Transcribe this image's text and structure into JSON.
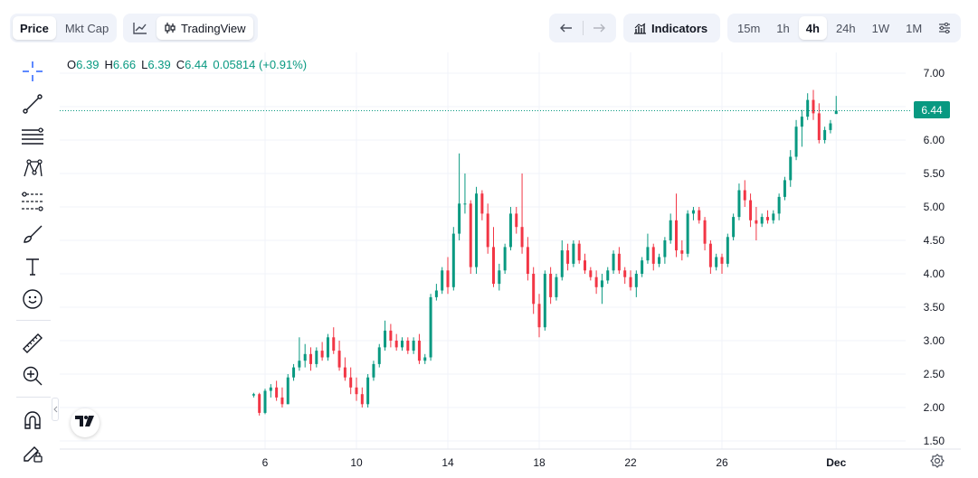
{
  "header": {
    "metric_tabs": [
      {
        "label": "Price",
        "active": true
      },
      {
        "label": "Mkt Cap",
        "active": false
      }
    ],
    "chart_type_tabs": [
      {
        "icon": "line-chart-icon",
        "active": false
      },
      {
        "icon": "candles-icon",
        "label": "TradingView",
        "active": true
      }
    ],
    "nav": [
      {
        "icon": "arrow-left-icon"
      },
      {
        "icon": "arrow-right-icon"
      }
    ],
    "indicators_label": "Indicators",
    "timeframes": [
      {
        "label": "15m",
        "active": false
      },
      {
        "label": "1h",
        "active": false
      },
      {
        "label": "4h",
        "active": true
      },
      {
        "label": "24h",
        "active": false
      },
      {
        "label": "1W",
        "active": false
      },
      {
        "label": "1M",
        "active": false
      }
    ],
    "settings_icon": "sliders-icon"
  },
  "toolbar": [
    "crosshair-icon",
    "trend-line-icon",
    "horizontal-lines-icon",
    "pattern-icon",
    "fib-levels-icon",
    "brush-icon",
    "text-icon",
    "emoji-icon",
    "ruler-icon",
    "zoom-in-icon",
    "magnet-icon",
    "edit-lock-icon"
  ],
  "legend": {
    "o_label": "O",
    "o": "6.39",
    "h_label": "H",
    "h": "6.66",
    "l_label": "L",
    "l": "6.39",
    "c_label": "C",
    "c": "6.44",
    "change": "0.05814 (+0.91%)"
  },
  "colors": {
    "up": "#089981",
    "down": "#f23645",
    "grid": "#f0f3fa",
    "text": "#131722"
  },
  "chart_data": {
    "type": "candlestick",
    "last_price": "6.44",
    "y_ticks": [
      "1.50",
      "2.00",
      "2.50",
      "3.00",
      "3.50",
      "4.00",
      "4.50",
      "5.00",
      "5.50",
      "6.00",
      "6.50",
      "7.00"
    ],
    "ylim": [
      1.5,
      7.0
    ],
    "x_ticks": [
      {
        "label": "6",
        "day": 6
      },
      {
        "label": "10",
        "day": 10
      },
      {
        "label": "14",
        "day": 14
      },
      {
        "label": "18",
        "day": 18
      },
      {
        "label": "22",
        "day": 22
      },
      {
        "label": "26",
        "day": 26
      },
      {
        "label": "Dec",
        "day": 31
      }
    ],
    "xlim": [
      1,
      32
    ],
    "start_day": 5.5,
    "candles": [
      [
        2.18,
        2.22,
        2.15,
        2.2
      ],
      [
        2.2,
        2.22,
        1.88,
        1.92
      ],
      [
        1.92,
        2.28,
        1.9,
        2.25
      ],
      [
        2.25,
        2.35,
        2.15,
        2.3
      ],
      [
        2.3,
        2.4,
        2.1,
        2.15
      ],
      [
        2.15,
        2.3,
        2.0,
        2.05
      ],
      [
        2.05,
        2.5,
        2.05,
        2.45
      ],
      [
        2.45,
        2.65,
        2.4,
        2.6
      ],
      [
        2.6,
        3.05,
        2.55,
        2.7
      ],
      [
        2.7,
        2.95,
        2.6,
        2.8
      ],
      [
        2.8,
        2.9,
        2.55,
        2.65
      ],
      [
        2.65,
        2.9,
        2.6,
        2.85
      ],
      [
        2.85,
        2.98,
        2.7,
        2.75
      ],
      [
        2.75,
        3.1,
        2.7,
        3.05
      ],
      [
        3.05,
        3.2,
        2.8,
        2.85
      ],
      [
        2.85,
        3.0,
        2.55,
        2.6
      ],
      [
        2.6,
        2.75,
        2.4,
        2.45
      ],
      [
        2.45,
        2.6,
        2.2,
        2.3
      ],
      [
        2.3,
        2.45,
        2.1,
        2.2
      ],
      [
        2.2,
        2.3,
        2.0,
        2.05
      ],
      [
        2.05,
        2.5,
        2.0,
        2.45
      ],
      [
        2.45,
        2.7,
        2.4,
        2.65
      ],
      [
        2.65,
        2.95,
        2.6,
        2.9
      ],
      [
        2.9,
        3.3,
        2.85,
        3.15
      ],
      [
        3.15,
        3.25,
        2.9,
        3.0
      ],
      [
        3.0,
        3.1,
        2.85,
        2.9
      ],
      [
        2.9,
        3.05,
        2.85,
        3.0
      ],
      [
        3.0,
        3.05,
        2.8,
        2.85
      ],
      [
        2.85,
        3.05,
        2.8,
        3.0
      ],
      [
        3.0,
        3.1,
        2.65,
        2.7
      ],
      [
        2.7,
        2.8,
        2.65,
        2.75
      ],
      [
        2.75,
        3.7,
        2.7,
        3.65
      ],
      [
        3.65,
        3.85,
        3.6,
        3.75
      ],
      [
        3.75,
        4.1,
        3.7,
        4.05
      ],
      [
        4.05,
        4.25,
        3.7,
        3.8
      ],
      [
        3.8,
        4.7,
        3.75,
        4.6
      ],
      [
        4.6,
        5.8,
        4.5,
        5.05
      ],
      [
        5.05,
        5.5,
        4.9,
        5.05
      ],
      [
        5.05,
        5.1,
        4.0,
        4.1
      ],
      [
        4.1,
        5.3,
        4.0,
        5.2
      ],
      [
        5.2,
        5.25,
        4.8,
        4.9
      ],
      [
        4.9,
        5.05,
        4.3,
        4.4
      ],
      [
        4.4,
        4.7,
        3.8,
        3.85
      ],
      [
        3.85,
        4.15,
        3.75,
        4.05
      ],
      [
        4.05,
        4.45,
        4.0,
        4.4
      ],
      [
        4.4,
        5.0,
        4.35,
        4.9
      ],
      [
        4.9,
        5.0,
        4.6,
        4.7
      ],
      [
        4.7,
        5.5,
        4.3,
        4.4
      ],
      [
        4.4,
        4.55,
        3.9,
        4.0
      ],
      [
        4.0,
        4.1,
        3.4,
        3.55
      ],
      [
        3.55,
        3.7,
        3.05,
        3.2
      ],
      [
        3.2,
        4.05,
        3.15,
        4.0
      ],
      [
        4.0,
        4.1,
        3.55,
        3.65
      ],
      [
        3.65,
        4.0,
        3.6,
        3.95
      ],
      [
        3.95,
        4.5,
        3.9,
        4.35
      ],
      [
        4.35,
        4.45,
        4.05,
        4.15
      ],
      [
        4.15,
        4.5,
        4.1,
        4.45
      ],
      [
        4.45,
        4.5,
        4.15,
        4.2
      ],
      [
        4.2,
        4.3,
        4.0,
        4.05
      ],
      [
        4.05,
        4.1,
        3.9,
        3.95
      ],
      [
        3.95,
        4.05,
        3.7,
        3.8
      ],
      [
        3.8,
        4.0,
        3.55,
        3.9
      ],
      [
        3.9,
        4.1,
        3.85,
        4.05
      ],
      [
        4.05,
        4.35,
        4.0,
        4.3
      ],
      [
        4.3,
        4.4,
        4.0,
        4.05
      ],
      [
        4.05,
        4.1,
        3.85,
        3.95
      ],
      [
        3.95,
        4.05,
        3.75,
        3.8
      ],
      [
        3.8,
        4.05,
        3.65,
        4.0
      ],
      [
        4.0,
        4.25,
        3.95,
        4.2
      ],
      [
        4.2,
        4.6,
        4.15,
        4.4
      ],
      [
        4.4,
        4.45,
        4.05,
        4.15
      ],
      [
        4.15,
        4.3,
        4.1,
        4.25
      ],
      [
        4.25,
        4.55,
        4.15,
        4.5
      ],
      [
        4.5,
        4.9,
        4.45,
        4.8
      ],
      [
        4.8,
        5.2,
        4.25,
        4.35
      ],
      [
        4.35,
        4.5,
        4.2,
        4.3
      ],
      [
        4.3,
        4.95,
        4.25,
        4.9
      ],
      [
        4.9,
        5.0,
        4.8,
        4.95
      ],
      [
        4.95,
        5.0,
        4.75,
        4.8
      ],
      [
        4.8,
        4.85,
        4.35,
        4.45
      ],
      [
        4.45,
        4.5,
        4.0,
        4.1
      ],
      [
        4.1,
        4.3,
        4.05,
        4.25
      ],
      [
        4.25,
        4.3,
        4.0,
        4.15
      ],
      [
        4.15,
        4.6,
        4.1,
        4.55
      ],
      [
        4.55,
        4.9,
        4.5,
        4.85
      ],
      [
        4.85,
        5.35,
        4.8,
        5.25
      ],
      [
        5.25,
        5.4,
        5.0,
        5.1
      ],
      [
        5.1,
        5.2,
        4.7,
        4.8
      ],
      [
        4.8,
        5.0,
        4.5,
        4.75
      ],
      [
        4.75,
        4.9,
        4.7,
        4.85
      ],
      [
        4.85,
        4.95,
        4.75,
        4.8
      ],
      [
        4.8,
        4.95,
        4.75,
        4.9
      ],
      [
        4.9,
        5.2,
        4.8,
        5.15
      ],
      [
        5.15,
        5.45,
        5.1,
        5.4
      ],
      [
        5.4,
        5.85,
        5.3,
        5.75
      ],
      [
        5.75,
        6.3,
        5.7,
        6.2
      ],
      [
        6.2,
        6.45,
        5.9,
        6.35
      ],
      [
        6.35,
        6.7,
        6.3,
        6.6
      ],
      [
        6.6,
        6.75,
        6.3,
        6.4
      ],
      [
        6.4,
        6.55,
        5.95,
        6.0
      ],
      [
        6.0,
        6.2,
        5.95,
        6.15
      ],
      [
        6.15,
        6.3,
        6.1,
        6.25
      ],
      [
        6.39,
        6.66,
        6.39,
        6.44
      ]
    ]
  }
}
